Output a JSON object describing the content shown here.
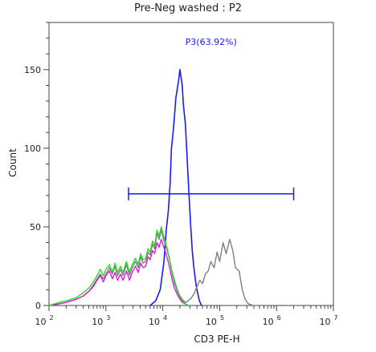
{
  "chart_data": {
    "type": "histogram",
    "title": "Pre-Neg washed : P2",
    "xlabel": "CD3 PE-H",
    "ylabel": "Count",
    "x_scale": "log",
    "xlim": [
      100,
      10000000
    ],
    "ylim": [
      0,
      180
    ],
    "x_ticks": [
      {
        "base": "10",
        "exp": "2",
        "value": 100
      },
      {
        "base": "10",
        "exp": "3",
        "value": 1000
      },
      {
        "base": "10",
        "exp": "4",
        "value": 10000
      },
      {
        "base": "10",
        "exp": "5",
        "value": 100000
      },
      {
        "base": "10",
        "exp": "6",
        "value": 1000000
      },
      {
        "base": "10",
        "exp": "7",
        "value": 10000000
      }
    ],
    "y_ticks": [
      0,
      50,
      100,
      150
    ],
    "gate": {
      "label": "P3(63.92%)",
      "x_range": [
        2500,
        2000000
      ],
      "y": 71,
      "color": "#1a1aff"
    },
    "series": [
      {
        "color": "#1a1aff",
        "width": 1.6,
        "points": [
          [
            6000,
            0
          ],
          [
            7500,
            3
          ],
          [
            9000,
            10
          ],
          [
            10500,
            28
          ],
          [
            11500,
            48
          ],
          [
            12500,
            60
          ],
          [
            13500,
            78
          ],
          [
            14200,
            100
          ],
          [
            15000,
            108
          ],
          [
            16000,
            120
          ],
          [
            17000,
            132
          ],
          [
            18000,
            138
          ],
          [
            19000,
            143
          ],
          [
            20000,
            150
          ],
          [
            21000,
            145
          ],
          [
            22000,
            140
          ],
          [
            23000,
            128
          ],
          [
            25000,
            115
          ],
          [
            27000,
            92
          ],
          [
            29000,
            70
          ],
          [
            31000,
            50
          ],
          [
            33000,
            35
          ],
          [
            35000,
            25
          ],
          [
            37000,
            18
          ],
          [
            39000,
            12
          ],
          [
            41000,
            8
          ],
          [
            44000,
            3
          ],
          [
            48000,
            0
          ]
        ]
      },
      {
        "color": "#808080",
        "width": 1.4,
        "points": [
          [
            100,
            0
          ],
          [
            150,
            1
          ],
          [
            200,
            2
          ],
          [
            300,
            4
          ],
          [
            400,
            6
          ],
          [
            500,
            9
          ],
          [
            600,
            13
          ],
          [
            700,
            17
          ],
          [
            800,
            20
          ],
          [
            900,
            17
          ],
          [
            1000,
            20
          ],
          [
            1150,
            24
          ],
          [
            1300,
            20
          ],
          [
            1450,
            25
          ],
          [
            1600,
            19
          ],
          [
            1800,
            23
          ],
          [
            2000,
            19
          ],
          [
            2300,
            26
          ],
          [
            2600,
            19
          ],
          [
            2900,
            24
          ],
          [
            3300,
            28
          ],
          [
            3700,
            24
          ],
          [
            4100,
            31
          ],
          [
            4500,
            27
          ],
          [
            5000,
            28
          ],
          [
            5500,
            34
          ],
          [
            6000,
            32
          ],
          [
            6600,
            39
          ],
          [
            7200,
            36
          ],
          [
            7900,
            46
          ],
          [
            8600,
            42
          ],
          [
            9400,
            48
          ],
          [
            10200,
            43
          ],
          [
            11000,
            39
          ],
          [
            12000,
            35
          ],
          [
            13000,
            30
          ],
          [
            14500,
            22
          ],
          [
            16000,
            16
          ],
          [
            18000,
            10
          ],
          [
            20000,
            6
          ],
          [
            22000,
            4
          ],
          [
            25000,
            2
          ],
          [
            28000,
            3
          ],
          [
            32000,
            5
          ],
          [
            36000,
            8
          ],
          [
            40000,
            12
          ],
          [
            45000,
            16
          ],
          [
            50000,
            14
          ],
          [
            56000,
            20
          ],
          [
            63000,
            22
          ],
          [
            70000,
            28
          ],
          [
            80000,
            24
          ],
          [
            90000,
            34
          ],
          [
            100000,
            28
          ],
          [
            115000,
            40
          ],
          [
            130000,
            33
          ],
          [
            150000,
            42
          ],
          [
            170000,
            35
          ],
          [
            190000,
            24
          ],
          [
            220000,
            22
          ],
          [
            250000,
            10
          ],
          [
            280000,
            4
          ],
          [
            320000,
            1
          ],
          [
            400000,
            0
          ]
        ]
      },
      {
        "color": "#e010e0",
        "width": 1.3,
        "points": [
          [
            100,
            0
          ],
          [
            150,
            1
          ],
          [
            200,
            2
          ],
          [
            300,
            4
          ],
          [
            400,
            6
          ],
          [
            500,
            9
          ],
          [
            600,
            12
          ],
          [
            700,
            16
          ],
          [
            800,
            19
          ],
          [
            900,
            15
          ],
          [
            1000,
            19
          ],
          [
            1150,
            22
          ],
          [
            1300,
            17
          ],
          [
            1450,
            21
          ],
          [
            1600,
            16
          ],
          [
            1800,
            20
          ],
          [
            2000,
            16
          ],
          [
            2300,
            22
          ],
          [
            2600,
            16
          ],
          [
            2900,
            21
          ],
          [
            3300,
            25
          ],
          [
            3700,
            21
          ],
          [
            4100,
            27
          ],
          [
            4500,
            24
          ],
          [
            5000,
            25
          ],
          [
            5500,
            31
          ],
          [
            6000,
            29
          ],
          [
            6600,
            35
          ],
          [
            7200,
            33
          ],
          [
            7900,
            40
          ],
          [
            8600,
            37
          ],
          [
            9400,
            42
          ],
          [
            10200,
            38
          ],
          [
            11000,
            35
          ],
          [
            12000,
            30
          ],
          [
            13000,
            25
          ],
          [
            14500,
            17
          ],
          [
            16000,
            11
          ],
          [
            18000,
            7
          ],
          [
            20000,
            4
          ],
          [
            22000,
            2
          ],
          [
            25000,
            1
          ],
          [
            28000,
            0
          ]
        ]
      },
      {
        "color": "#22d81f",
        "width": 1.3,
        "points": [
          [
            100,
            0
          ],
          [
            150,
            2
          ],
          [
            200,
            3
          ],
          [
            300,
            5
          ],
          [
            400,
            8
          ],
          [
            500,
            11
          ],
          [
            600,
            15
          ],
          [
            700,
            19
          ],
          [
            800,
            23
          ],
          [
            900,
            19
          ],
          [
            1000,
            23
          ],
          [
            1150,
            26
          ],
          [
            1300,
            21
          ],
          [
            1450,
            27
          ],
          [
            1600,
            21
          ],
          [
            1800,
            25
          ],
          [
            2000,
            21
          ],
          [
            2300,
            28
          ],
          [
            2600,
            21
          ],
          [
            2900,
            26
          ],
          [
            3300,
            30
          ],
          [
            3700,
            26
          ],
          [
            4100,
            33
          ],
          [
            4500,
            29
          ],
          [
            5000,
            30
          ],
          [
            5500,
            36
          ],
          [
            6000,
            34
          ],
          [
            6600,
            41
          ],
          [
            7200,
            38
          ],
          [
            7900,
            48
          ],
          [
            8600,
            44
          ],
          [
            9400,
            50
          ],
          [
            10200,
            45
          ],
          [
            11000,
            41
          ],
          [
            12000,
            36
          ],
          [
            13000,
            30
          ],
          [
            14500,
            21
          ],
          [
            16000,
            14
          ],
          [
            18000,
            9
          ],
          [
            20000,
            5
          ],
          [
            22000,
            3
          ],
          [
            25000,
            1
          ],
          [
            28000,
            0
          ]
        ]
      }
    ]
  }
}
